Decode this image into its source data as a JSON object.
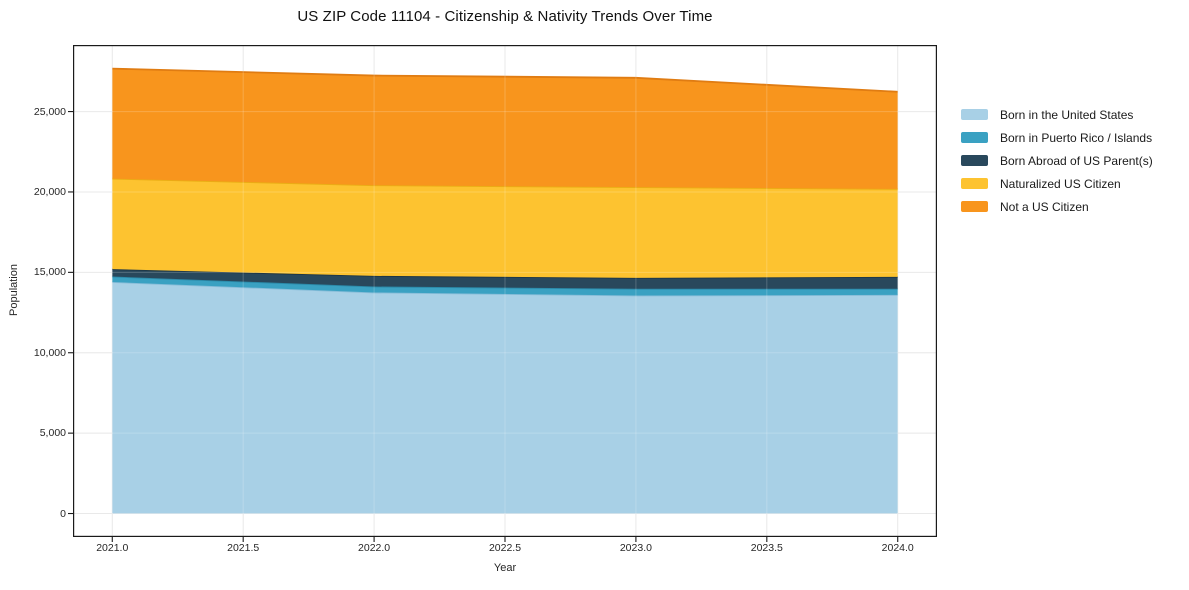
{
  "chart_data": {
    "type": "area",
    "stacked": true,
    "title": "US ZIP Code 11104 - Citizenship & Nativity Trends Over Time",
    "xlabel": "Year",
    "ylabel": "Population",
    "x": [
      2021,
      2022,
      2023,
      2024
    ],
    "series": [
      {
        "name": "Born in the United States",
        "color": "#a8d0e6",
        "edge_color": "#86bcd8",
        "values": [
          14400,
          13750,
          13560,
          13600
        ]
      },
      {
        "name": "Born in Puerto Rico / Islands",
        "color": "#3aa1c2",
        "edge_color": "#2b89a8",
        "values": [
          340,
          370,
          420,
          380
        ]
      },
      {
        "name": "Born Abroad of US Parent(s)",
        "color": "#29485c",
        "edge_color": "#1d3646",
        "values": [
          460,
          660,
          680,
          740
        ]
      },
      {
        "name": "Naturalized US Citizen",
        "color": "#fdc330",
        "edge_color": "#eaad14",
        "values": [
          5630,
          5640,
          5640,
          5470
        ]
      },
      {
        "name": "Not a US Citizen",
        "color": "#f8951d",
        "edge_color": "#e07c12",
        "values": [
          6840,
          6820,
          6800,
          6040
        ]
      }
    ],
    "stacked_totals": [
      27670,
      27240,
      27100,
      26230
    ],
    "x_ticks": [
      {
        "value": 2021.0,
        "label": "2021.0"
      },
      {
        "value": 2021.5,
        "label": "2021.5"
      },
      {
        "value": 2022.0,
        "label": "2022.0"
      },
      {
        "value": 2022.5,
        "label": "2022.5"
      },
      {
        "value": 2023.0,
        "label": "2023.0"
      },
      {
        "value": 2023.5,
        "label": "2023.5"
      },
      {
        "value": 2024.0,
        "label": "2024.0"
      }
    ],
    "y_ticks": [
      {
        "value": 0,
        "label": "0"
      },
      {
        "value": 5000,
        "label": "5,000"
      },
      {
        "value": 10000,
        "label": "10,000"
      },
      {
        "value": 15000,
        "label": "15,000"
      },
      {
        "value": 20000,
        "label": "20,000"
      },
      {
        "value": 25000,
        "label": "25,000"
      }
    ],
    "xlim": [
      2020.85,
      2024.15
    ],
    "ylim": [
      -1460,
      29140
    ],
    "grid": true,
    "grid_color": "#e4e4e4",
    "spine_color": "#1a1a1a",
    "legend_position": "right-outside",
    "background": "#ffffff"
  }
}
